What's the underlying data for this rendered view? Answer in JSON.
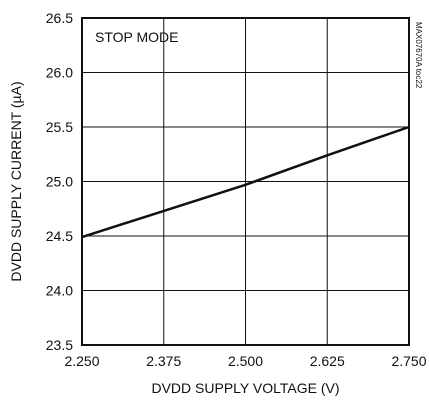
{
  "chart_data": {
    "type": "line",
    "title": "",
    "annotation": "STOP MODE",
    "figure_code": "MAX07670A toc22",
    "xlabel": "DVDD SUPPLY VOLTAGE (V)",
    "ylabel": "DVDD SUPPLY CURRENT (µA)",
    "xlim": [
      2.25,
      2.75
    ],
    "ylim": [
      23.5,
      26.5
    ],
    "x_ticks": [
      "2.250",
      "2.375",
      "2.500",
      "2.625",
      "2.750"
    ],
    "y_ticks": [
      "23.5",
      "24.0",
      "24.5",
      "25.0",
      "25.5",
      "26.0",
      "26.5"
    ],
    "grid": true,
    "series": [
      {
        "x": [
          2.25,
          2.375,
          2.5,
          2.625,
          2.75
        ],
        "y": [
          24.49,
          24.73,
          24.97,
          25.24,
          25.5
        ]
      }
    ]
  }
}
